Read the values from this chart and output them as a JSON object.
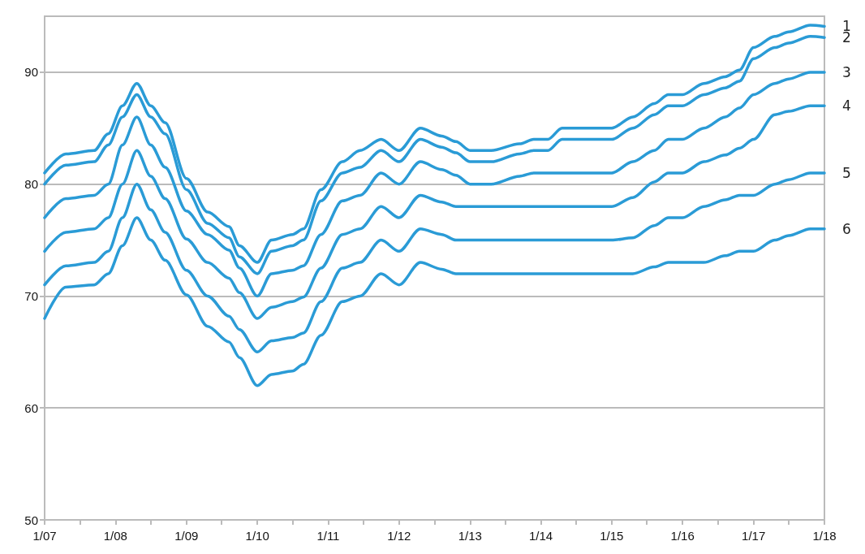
{
  "chart_data": {
    "type": "line",
    "x": [
      "2007-01-01",
      "2007-04-20",
      "2007-09-13",
      "2007-11-25",
      "2008-02-06",
      "2008-04-20",
      "2008-07-01",
      "2008-09-13",
      "2009-01-01",
      "2009-04-20",
      "2009-08-08",
      "2009-10-01",
      "2010-01-01",
      "2010-03-15",
      "2010-07-01",
      "2010-08-26",
      "2010-11-25",
      "2011-03-15",
      "2011-06-14",
      "2011-10-01",
      "2012-01-01",
      "2012-04-20",
      "2012-08-08",
      "2012-10-20",
      "2013-01-01",
      "2013-04-20",
      "2013-09-13",
      "2013-11-25",
      "2014-02-06",
      "2014-04-20",
      "2014-08-08",
      "2015-01-01",
      "2015-04-20",
      "2015-08-08",
      "2015-10-20",
      "2016-01-01",
      "2016-04-20",
      "2016-08-08",
      "2016-10-20",
      "2017-01-01",
      "2017-04-20",
      "2017-07-01",
      "2017-10-20",
      "2018-01-01"
    ],
    "series": [
      {
        "name": "1",
        "color": "#2a9bd6",
        "values": [
          81,
          82.7,
          83,
          84.5,
          87,
          89,
          87,
          85.5,
          80.5,
          77.5,
          76.2,
          74.5,
          73,
          75,
          75.5,
          76,
          79.5,
          82,
          83,
          84,
          83,
          85,
          84.3,
          83.8,
          83,
          83,
          83.6,
          84,
          84,
          85,
          85,
          85,
          86,
          87.2,
          88,
          88,
          89,
          89.6,
          90.2,
          92.2,
          93.2,
          93.6,
          94.2,
          94.1
        ]
      },
      {
        "name": "2",
        "color": "#2a9bd6",
        "values": [
          80,
          81.7,
          82,
          83.5,
          86,
          88,
          86,
          84.5,
          79.5,
          76.5,
          75.2,
          73.5,
          72,
          74,
          74.5,
          75,
          78.5,
          81,
          81.5,
          83,
          82,
          84,
          83.3,
          82.8,
          82,
          82,
          82.7,
          83,
          83,
          84,
          84,
          84,
          85,
          86.2,
          87,
          87,
          88,
          88.6,
          89.2,
          91.2,
          92.2,
          92.6,
          93.2,
          93.1
        ]
      },
      {
        "name": "3",
        "color": "#2a9bd6",
        "values": [
          77,
          78.7,
          79,
          80,
          83.5,
          86,
          83.5,
          81.5,
          77.6,
          75.5,
          74.1,
          72.5,
          70,
          72,
          72.3,
          72.7,
          75.5,
          78.5,
          79,
          81,
          80,
          82,
          81.3,
          80.8,
          80,
          80,
          80.7,
          81,
          81,
          81,
          81,
          81,
          82,
          83,
          84,
          84,
          85,
          86,
          86.8,
          88,
          89,
          89.4,
          90,
          90
        ]
      },
      {
        "name": "4",
        "color": "#2a9bd6",
        "values": [
          74,
          75.7,
          76,
          77,
          80,
          83,
          80.7,
          78.7,
          75.1,
          73,
          71.6,
          70.3,
          68,
          69,
          69.5,
          69.9,
          72.5,
          75.5,
          76,
          78,
          77,
          79,
          78.4,
          78,
          78,
          78,
          78,
          78,
          78,
          78,
          78,
          78,
          78.8,
          80.2,
          81,
          81,
          82,
          82.6,
          83.2,
          84,
          86.2,
          86.5,
          87,
          87
        ]
      },
      {
        "name": "5",
        "color": "#2a9bd6",
        "values": [
          71,
          72.7,
          73,
          74,
          77,
          80,
          77.7,
          75.7,
          72.3,
          70,
          68.2,
          67,
          65,
          66,
          66.3,
          66.7,
          69.5,
          72.5,
          73,
          75,
          74,
          76,
          75.5,
          75,
          75,
          75,
          75,
          75,
          75,
          75,
          75,
          75,
          75.2,
          76.3,
          77,
          77,
          78,
          78.6,
          79,
          79,
          80,
          80.4,
          81,
          81
        ]
      },
      {
        "name": "6",
        "color": "#2a9bd6",
        "values": [
          68,
          70.8,
          71,
          72,
          74.5,
          77,
          75,
          73.2,
          70.1,
          67.3,
          65.9,
          64.5,
          62,
          63,
          63.3,
          63.9,
          66.5,
          69.5,
          70,
          72,
          71,
          73,
          72.4,
          72,
          72,
          72,
          72,
          72,
          72,
          72,
          72,
          72,
          72,
          72.6,
          73,
          73,
          73,
          73.6,
          74,
          74,
          75,
          75.4,
          76,
          76
        ]
      }
    ],
    "xlim": [
      "2007-01-01",
      "2018-01-01"
    ],
    "xticks": [
      {
        "value": "2007-01-01",
        "label": "1/07"
      },
      {
        "value": "2007-07-01",
        "label": null
      },
      {
        "value": "2008-01-01",
        "label": "1/08"
      },
      {
        "value": "2008-07-01",
        "label": null
      },
      {
        "value": "2009-01-01",
        "label": "1/09"
      },
      {
        "value": "2009-07-01",
        "label": null
      },
      {
        "value": "2010-01-01",
        "label": "1/10"
      },
      {
        "value": "2010-07-01",
        "label": null
      },
      {
        "value": "2011-01-01",
        "label": "1/11"
      },
      {
        "value": "2011-07-01",
        "label": null
      },
      {
        "value": "2012-01-01",
        "label": "1/12"
      },
      {
        "value": "2012-07-01",
        "label": null
      },
      {
        "value": "2013-01-01",
        "label": "1/13"
      },
      {
        "value": "2013-07-01",
        "label": null
      },
      {
        "value": "2014-01-01",
        "label": "1/14"
      },
      {
        "value": "2014-07-01",
        "label": null
      },
      {
        "value": "2015-01-01",
        "label": "1/15"
      },
      {
        "value": "2015-07-01",
        "label": null
      },
      {
        "value": "2016-01-01",
        "label": "1/16"
      },
      {
        "value": "2016-07-01",
        "label": null
      },
      {
        "value": "2017-01-01",
        "label": "1/17"
      },
      {
        "value": "2017-07-01",
        "label": null
      },
      {
        "value": "2018-01-01",
        "label": "1/18"
      }
    ],
    "ylim": [
      50,
      95
    ],
    "yticks": [
      50,
      60,
      70,
      80,
      90
    ],
    "grid": "y",
    "legend": false,
    "marker": "none",
    "line_style": "solid"
  }
}
